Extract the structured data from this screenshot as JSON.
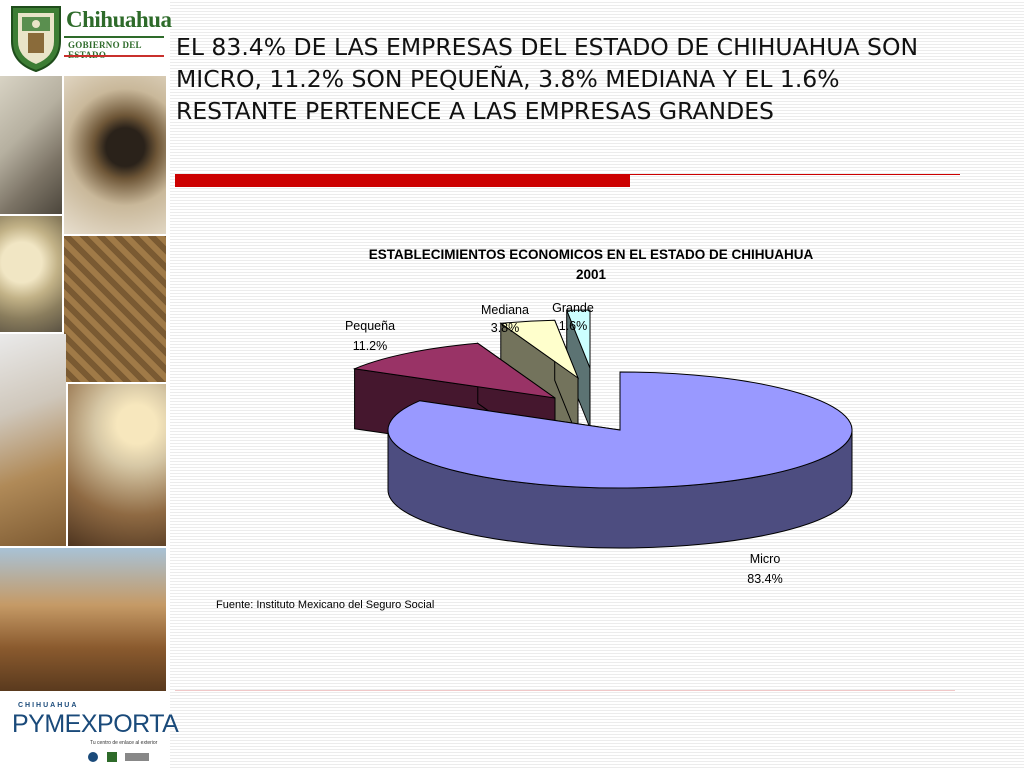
{
  "logo": {
    "title": "Chihuahua",
    "subtitle": "GOBIERNO DEL ESTADO"
  },
  "heading": "EL 83.4% DE LAS EMPRESAS DEL ESTADO DE CHIHUAHUA SON MICRO, 11.2% SON PEQUEÑA, 3.8% MEDIANA Y EL 1.6% RESTANTE PERTENECE A LAS EMPRESAS GRANDES",
  "chart_data": {
    "type": "pie",
    "title": "ESTABLECIMIENTOS ECONOMICOS EN EL ESTADO DE CHIHUAHUA",
    "subtitle": "2001",
    "three_d": true,
    "exploded": true,
    "slices": [
      {
        "label": "Micro",
        "value": 83.4,
        "value_label": "83.4%",
        "color": "#9999ff"
      },
      {
        "label": "Pequeña",
        "value": 11.2,
        "value_label": "11.2%",
        "color": "#993366"
      },
      {
        "label": "Mediana",
        "value": 3.8,
        "value_label": "3.8%",
        "color": "#ffffcc"
      },
      {
        "label": "Grande",
        "value": 1.6,
        "value_label": "1.6%",
        "color": "#ccffff"
      }
    ],
    "source": "Fuente: Instituto Mexicano del Seguro Social"
  },
  "footer_logo": {
    "top": "CHIHUAHUA",
    "name": "PYMEXPORTA",
    "tagline": "Tu centro de enlace al exterior"
  },
  "colors": {
    "accent_red": "#cc0000",
    "brand_green": "#2e6b2a",
    "brand_blue": "#1a4a7a"
  }
}
